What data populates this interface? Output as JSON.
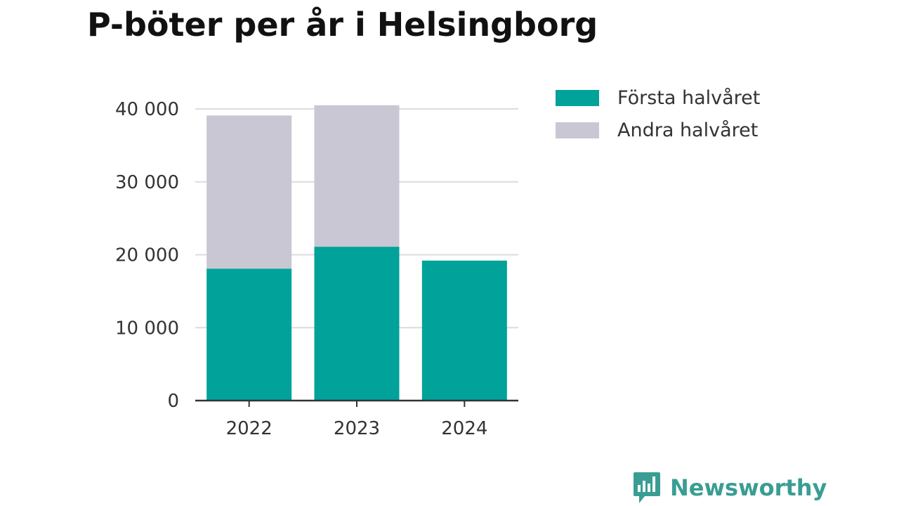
{
  "chart_data": {
    "type": "bar",
    "stacked": true,
    "title": "P-böter per år i Helsingborg",
    "categories": [
      "2022",
      "2023",
      "2024"
    ],
    "series": [
      {
        "name": "Första halvåret",
        "color": "#00a29a",
        "values": [
          18100,
          21100,
          19200
        ]
      },
      {
        "name": "Andra halvåret",
        "color": "#c8c7d3",
        "values": [
          21000,
          19400,
          0
        ]
      }
    ],
    "ylim": [
      0,
      40000
    ],
    "yticks": [
      0,
      10000,
      20000,
      30000,
      40000
    ],
    "ytick_labels": [
      "0",
      "10 000",
      "20 000",
      "30 000",
      "40 000"
    ],
    "grid": true,
    "legend_position": "top-right"
  },
  "branding": {
    "name": "Newsworthy",
    "icon": "newsworthy-logo-icon",
    "color": "#3a9d93"
  }
}
